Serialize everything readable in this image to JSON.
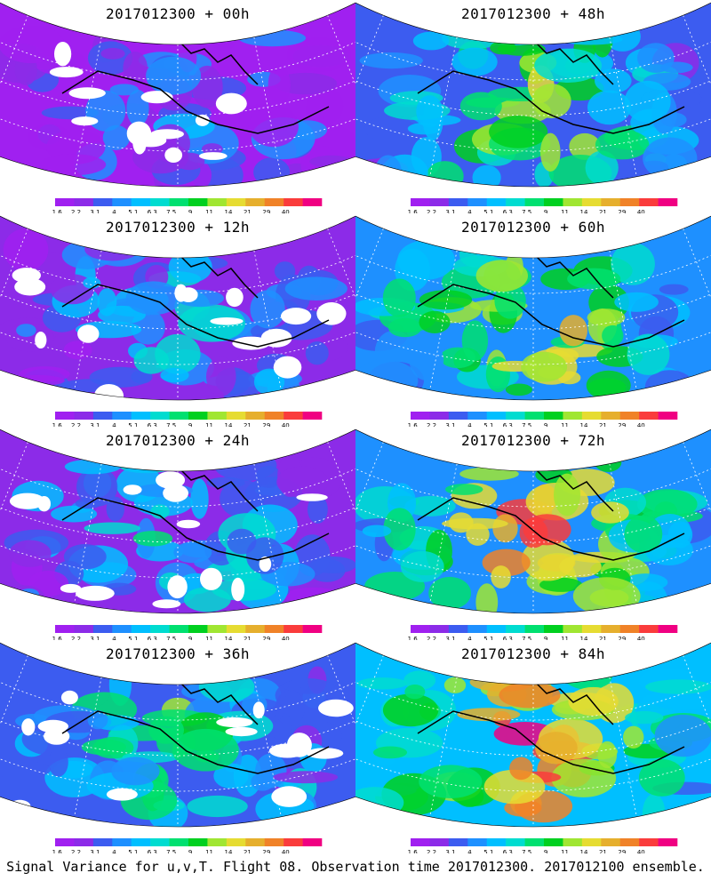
{
  "panels": [
    {
      "title": "2017012300 + 00h",
      "intensity": 0.15
    },
    {
      "title": "2017012300 + 48h",
      "intensity": 0.55
    },
    {
      "title": "2017012300 + 12h",
      "intensity": 0.25
    },
    {
      "title": "2017012300 + 60h",
      "intensity": 0.65
    },
    {
      "title": "2017012300 + 24h",
      "intensity": 0.35
    },
    {
      "title": "2017012300 + 72h",
      "intensity": 0.75
    },
    {
      "title": "2017012300 + 36h",
      "intensity": 0.45
    },
    {
      "title": "2017012300 + 84h",
      "intensity": 0.85
    }
  ],
  "colorbar": {
    "labels": [
      "1.6",
      "2.2",
      "3.1",
      "4",
      "5.1",
      "6.3",
      "7.5",
      "9",
      "11",
      "14",
      "21",
      "29",
      "40"
    ],
    "colors": [
      "#a020f0",
      "#8c2be8",
      "#3c5cf0",
      "#1e90ff",
      "#00bfff",
      "#00dcd0",
      "#00e070",
      "#00d020",
      "#a0e632",
      "#e6dc32",
      "#e6af2d",
      "#f08228",
      "#fa3c3c",
      "#f00082"
    ]
  },
  "caption": "Signal Variance for u,v,T. Flight 08. Observation time 2017012300. 2017012100 ensemble.",
  "chart_data": {
    "type": "heatmap",
    "panels": [
      "2017012300 + 00h",
      "2017012300 + 12h",
      "2017012300 + 24h",
      "2017012300 + 36h",
      "2017012300 + 48h",
      "2017012300 + 60h",
      "2017012300 + 72h",
      "2017012300 + 84h"
    ],
    "color_levels": [
      1.6,
      2.2,
      3.1,
      4,
      5.1,
      6.3,
      7.5,
      9,
      11,
      14,
      21,
      29,
      40
    ]
  }
}
